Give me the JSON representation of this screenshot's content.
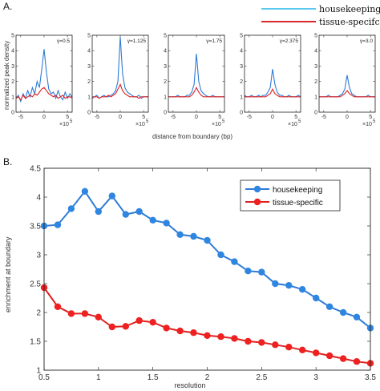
{
  "panels": {
    "a_label": "A.",
    "b_label": "B."
  },
  "legend_top": {
    "items": [
      {
        "label": "housekeeping",
        "color": "#5bc8f0"
      },
      {
        "label": "tissue-specifc",
        "color": "#d8262a"
      }
    ]
  },
  "colors": {
    "blue": "#2e7bd6",
    "red": "#e02020",
    "blue_marker": "#2f86e0",
    "red_marker": "#ee2020"
  },
  "chart_data": [
    {
      "type": "line",
      "panel": "A",
      "ylabel": "normalized peak density",
      "xlabel": "distance from boundary (bp)",
      "x_exponent_label": "×10",
      "x_exponent": "5",
      "xlim": [
        -6,
        6
      ],
      "ylim": [
        0,
        5
      ],
      "xticks": [
        -5,
        0,
        5
      ],
      "yticks": [
        0,
        1,
        2,
        3,
        4,
        5
      ],
      "subplots": [
        {
          "gamma_label": "γ=0.5",
          "series": [
            {
              "name": "housekeeping",
              "x": [
                -6,
                -5.5,
                -5,
                -4.5,
                -4,
                -3.5,
                -3,
                -2.5,
                -2,
                -1.5,
                -1,
                -0.5,
                0,
                0.5,
                1,
                1.5,
                2,
                2.5,
                3,
                3.5,
                4,
                4.5,
                5,
                5.5,
                6
              ],
              "y": [
                0.9,
                1.1,
                0.7,
                1.2,
                0.9,
                1.4,
                1.0,
                1.6,
                1.2,
                2.0,
                1.6,
                2.8,
                4.1,
                2.6,
                1.5,
                1.2,
                1.3,
                0.9,
                1.4,
                1.0,
                0.8,
                1.3,
                0.9,
                1.2,
                1.0
              ]
            },
            {
              "name": "tissue-specific",
              "x": [
                -6,
                -5.5,
                -5,
                -4.5,
                -4,
                -3.5,
                -3,
                -2.5,
                -2,
                -1.5,
                -1,
                -0.5,
                0,
                0.5,
                1,
                1.5,
                2,
                2.5,
                3,
                3.5,
                4,
                4.5,
                5,
                5.5,
                6
              ],
              "y": [
                0.9,
                1.0,
                0.8,
                1.1,
                0.9,
                1.0,
                1.1,
                1.0,
                1.2,
                1.1,
                1.3,
                1.5,
                1.6,
                1.4,
                1.2,
                1.1,
                1.0,
                1.1,
                0.9,
                1.0,
                1.1,
                0.9,
                1.0,
                1.0,
                0.9
              ]
            }
          ]
        },
        {
          "gamma_label": "γ=1.125",
          "series": [
            {
              "name": "housekeeping",
              "x": [
                -6,
                -5.5,
                -5,
                -4.5,
                -4,
                -3.5,
                -3,
                -2.5,
                -2,
                -1.5,
                -1,
                -0.5,
                0,
                0.5,
                1,
                1.5,
                2,
                2.5,
                3,
                3.5,
                4,
                4.5,
                5,
                5.5,
                6
              ],
              "y": [
                1.0,
                1.0,
                1.1,
                0.9,
                1.0,
                1.1,
                1.0,
                1.0,
                1.1,
                1.2,
                1.4,
                2.0,
                4.9,
                2.5,
                1.6,
                1.3,
                1.2,
                1.1,
                1.0,
                1.0,
                1.1,
                0.9,
                1.0,
                1.0,
                1.0
              ]
            },
            {
              "name": "tissue-specific",
              "x": [
                -6,
                -5.5,
                -5,
                -4.5,
                -4,
                -3.5,
                -3,
                -2.5,
                -2,
                -1.5,
                -1,
                -0.5,
                0,
                0.5,
                1,
                1.5,
                2,
                2.5,
                3,
                3.5,
                4,
                4.5,
                5,
                5.5,
                6
              ],
              "y": [
                0.9,
                1.0,
                1.0,
                0.9,
                1.0,
                1.0,
                1.0,
                1.1,
                1.0,
                1.1,
                1.2,
                1.5,
                1.8,
                1.4,
                1.2,
                1.1,
                1.0,
                1.0,
                1.0,
                1.0,
                0.9,
                1.0,
                1.0,
                1.0,
                1.0
              ]
            }
          ]
        },
        {
          "gamma_label": "γ=1.75",
          "series": [
            {
              "name": "housekeeping",
              "x": [
                -6,
                -5.5,
                -5,
                -4.5,
                -4,
                -3.5,
                -3,
                -2.5,
                -2,
                -1.5,
                -1,
                -0.5,
                0,
                0.5,
                1,
                1.5,
                2,
                2.5,
                3,
                3.5,
                4,
                4.5,
                5,
                5.5,
                6
              ],
              "y": [
                1.0,
                1.0,
                1.0,
                1.0,
                1.1,
                1.0,
                1.0,
                1.0,
                1.1,
                1.1,
                1.3,
                1.8,
                3.8,
                2.0,
                1.4,
                1.2,
                1.1,
                1.0,
                1.0,
                1.1,
                1.0,
                1.0,
                1.0,
                1.0,
                1.0
              ]
            },
            {
              "name": "tissue-specific",
              "x": [
                -6,
                -5.5,
                -5,
                -4.5,
                -4,
                -3.5,
                -3,
                -2.5,
                -2,
                -1.5,
                -1,
                -0.5,
                0,
                0.5,
                1,
                1.5,
                2,
                2.5,
                3,
                3.5,
                4,
                4.5,
                5,
                5.5,
                6
              ],
              "y": [
                1.0,
                1.0,
                1.0,
                1.0,
                1.0,
                1.0,
                1.0,
                1.0,
                1.0,
                1.0,
                1.1,
                1.3,
                1.6,
                1.3,
                1.1,
                1.0,
                1.0,
                1.0,
                1.0,
                1.0,
                1.0,
                1.0,
                1.0,
                1.0,
                1.0
              ]
            }
          ]
        },
        {
          "gamma_label": "γ=2.375",
          "series": [
            {
              "name": "housekeeping",
              "x": [
                -6,
                -5.5,
                -5,
                -4.5,
                -4,
                -3.5,
                -3,
                -2.5,
                -2,
                -1.5,
                -1,
                -0.5,
                0,
                0.5,
                1,
                1.5,
                2,
                2.5,
                3,
                3.5,
                4,
                4.5,
                5,
                5.5,
                6
              ],
              "y": [
                1.1,
                1.0,
                1.0,
                1.1,
                1.0,
                1.0,
                1.1,
                1.0,
                1.1,
                1.1,
                1.3,
                1.6,
                2.8,
                1.8,
                1.3,
                1.1,
                1.1,
                1.0,
                1.0,
                1.1,
                1.0,
                1.0,
                1.0,
                1.1,
                1.0
              ]
            },
            {
              "name": "tissue-specific",
              "x": [
                -6,
                -5.5,
                -5,
                -4.5,
                -4,
                -3.5,
                -3,
                -2.5,
                -2,
                -1.5,
                -1,
                -0.5,
                0,
                0.5,
                1,
                1.5,
                2,
                2.5,
                3,
                3.5,
                4,
                4.5,
                5,
                5.5,
                6
              ],
              "y": [
                1.0,
                1.0,
                1.0,
                1.0,
                1.0,
                1.0,
                1.0,
                1.0,
                1.0,
                1.0,
                1.1,
                1.2,
                1.5,
                1.2,
                1.1,
                1.0,
                1.0,
                1.0,
                1.0,
                1.0,
                1.0,
                1.0,
                1.0,
                1.0,
                1.0
              ]
            }
          ]
        },
        {
          "gamma_label": "γ=3.0",
          "series": [
            {
              "name": "housekeeping",
              "x": [
                -6,
                -5.5,
                -5,
                -4.5,
                -4,
                -3.5,
                -3,
                -2.5,
                -2,
                -1.5,
                -1,
                -0.5,
                0,
                0.5,
                1,
                1.5,
                2,
                2.5,
                3,
                3.5,
                4,
                4.5,
                5,
                5.5,
                6
              ],
              "y": [
                1.0,
                1.0,
                1.0,
                1.0,
                1.1,
                1.0,
                1.0,
                1.0,
                1.0,
                1.1,
                1.2,
                1.5,
                2.4,
                1.6,
                1.2,
                1.1,
                1.0,
                1.0,
                1.0,
                1.0,
                1.0,
                1.1,
                1.0,
                1.0,
                1.0
              ]
            },
            {
              "name": "tissue-specific",
              "x": [
                -6,
                -5.5,
                -5,
                -4.5,
                -4,
                -3.5,
                -3,
                -2.5,
                -2,
                -1.5,
                -1,
                -0.5,
                0,
                0.5,
                1,
                1.5,
                2,
                2.5,
                3,
                3.5,
                4,
                4.5,
                5,
                5.5,
                6
              ],
              "y": [
                1.0,
                1.0,
                1.0,
                1.0,
                1.0,
                1.0,
                1.0,
                1.0,
                1.0,
                1.0,
                1.1,
                1.2,
                1.4,
                1.2,
                1.1,
                1.0,
                1.0,
                1.0,
                1.0,
                1.0,
                1.0,
                1.0,
                1.0,
                1.0,
                1.0
              ]
            }
          ]
        }
      ]
    },
    {
      "type": "line",
      "panel": "B",
      "xlabel": "resolution",
      "ylabel": "enrichment at boundary",
      "xlim": [
        0.5,
        3.5
      ],
      "ylim": [
        1,
        4.5
      ],
      "xticks": [
        0.5,
        1,
        1.5,
        2,
        2.5,
        3,
        3.5
      ],
      "yticks": [
        1,
        1.5,
        2,
        2.5,
        3,
        3.5,
        4,
        4.5
      ],
      "legend_placement": "top-right",
      "x": [
        0.5,
        0.625,
        0.75,
        0.875,
        1.0,
        1.125,
        1.25,
        1.375,
        1.5,
        1.625,
        1.75,
        1.875,
        2.0,
        2.125,
        2.25,
        2.375,
        2.5,
        2.625,
        2.75,
        2.875,
        3.0,
        3.125,
        3.25,
        3.375,
        3.5
      ],
      "series": [
        {
          "name": "housekeeping",
          "values": [
            3.5,
            3.52,
            3.8,
            4.1,
            3.75,
            4.02,
            3.7,
            3.75,
            3.6,
            3.55,
            3.35,
            3.32,
            3.25,
            3.0,
            2.88,
            2.72,
            2.7,
            2.5,
            2.47,
            2.4,
            2.25,
            2.1,
            2.0,
            1.92,
            1.73
          ]
        },
        {
          "name": "tissue-specific",
          "values": [
            2.43,
            2.1,
            1.98,
            1.98,
            1.92,
            1.75,
            1.76,
            1.86,
            1.83,
            1.73,
            1.68,
            1.65,
            1.6,
            1.58,
            1.55,
            1.5,
            1.48,
            1.44,
            1.4,
            1.35,
            1.3,
            1.25,
            1.2,
            1.15,
            1.12
          ]
        }
      ]
    }
  ]
}
